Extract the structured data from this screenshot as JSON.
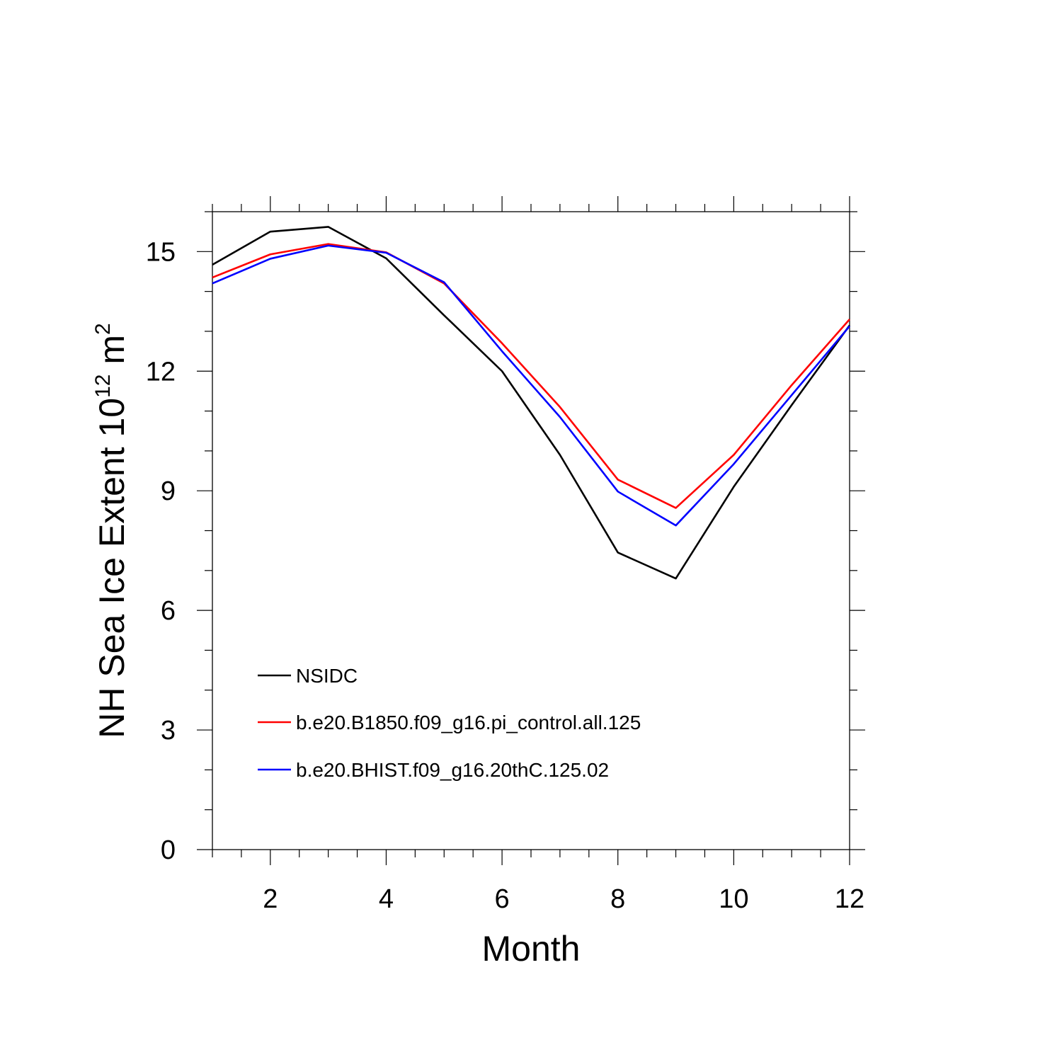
{
  "chart_data": {
    "type": "line",
    "xlabel": "Month",
    "ylabel": {
      "main": "NH Sea Ice Extent 10",
      "exponent1": "12",
      "unit": " m",
      "exponent2": "2"
    },
    "xlim": [
      1,
      12
    ],
    "ylim": [
      0,
      16
    ],
    "xticks": [
      2,
      4,
      6,
      8,
      10,
      12
    ],
    "xtick_labels": [
      "2",
      "4",
      "6",
      "8",
      "10",
      "12"
    ],
    "yticks": [
      0,
      3,
      6,
      9,
      12,
      15
    ],
    "ytick_labels": [
      "0",
      "3",
      "6",
      "9",
      "12",
      "15"
    ],
    "grid": false,
    "legend_position": "lower-left",
    "x": [
      1,
      2,
      3,
      4,
      5,
      6,
      7,
      8,
      9,
      10,
      11,
      12
    ],
    "series": [
      {
        "name": "NSIDC",
        "color": "#000000",
        "values": [
          14.67,
          15.5,
          15.62,
          14.83,
          13.4,
          12.0,
          9.9,
          7.45,
          6.8,
          9.1,
          11.15,
          13.15
        ]
      },
      {
        "name": "b.e20.B1850.f09_g16.pi_control.all.125",
        "color": "#ff0000",
        "values": [
          14.35,
          14.93,
          15.19,
          14.98,
          14.2,
          12.7,
          11.1,
          9.28,
          8.57,
          9.9,
          11.65,
          13.3
        ]
      },
      {
        "name": "b.e20.BHIST.f09_g16.20thC.125.02",
        "color": "#0000ff",
        "values": [
          14.2,
          14.82,
          15.15,
          14.97,
          14.23,
          12.5,
          10.85,
          8.98,
          8.13,
          9.67,
          11.4,
          13.13
        ]
      }
    ]
  }
}
